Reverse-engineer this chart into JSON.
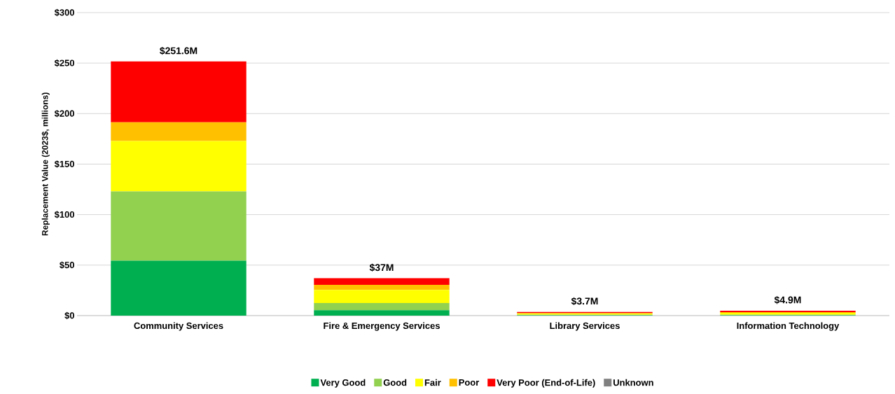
{
  "chart_data": {
    "type": "bar",
    "stacked": true,
    "ylabel": "Replacement Value (2023$, millions)",
    "categories": [
      "Community Services",
      "Fire & Emergency Services",
      "Library Services",
      "Information Technology"
    ],
    "series": [
      {
        "name": "Very Good",
        "color": "#00b050",
        "values": [
          54.3,
          5.3,
          0.3,
          0.3
        ]
      },
      {
        "name": "Good",
        "color": "#92d050",
        "values": [
          68.6,
          7.2,
          0.5,
          0.6
        ]
      },
      {
        "name": "Fair",
        "color": "#ffff00",
        "values": [
          49.9,
          12.9,
          1.2,
          1.8
        ]
      },
      {
        "name": "Poor",
        "color": "#ffc000",
        "values": [
          18.5,
          5.1,
          0.5,
          0.7
        ]
      },
      {
        "name": "Very Poor (End-of-Life)",
        "color": "#ff0000",
        "values": [
          60.3,
          6.5,
          1.2,
          1.5
        ]
      },
      {
        "name": "Unknown",
        "color": "#808080",
        "values": [
          0,
          0,
          0,
          0
        ]
      }
    ],
    "totals": [
      "$251.6M",
      "$37M",
      "$3.7M",
      "$4.9M"
    ],
    "ylim": [
      0,
      300
    ],
    "yticks": [
      {
        "value": 0,
        "label": "$0"
      },
      {
        "value": 50,
        "label": "$50"
      },
      {
        "value": 100,
        "label": "$100"
      },
      {
        "value": 150,
        "label": "$150"
      },
      {
        "value": 200,
        "label": "$200"
      },
      {
        "value": 250,
        "label": "$250"
      },
      {
        "value": 300,
        "label": "$300"
      }
    ],
    "grid": "y",
    "legend": "bottom"
  }
}
